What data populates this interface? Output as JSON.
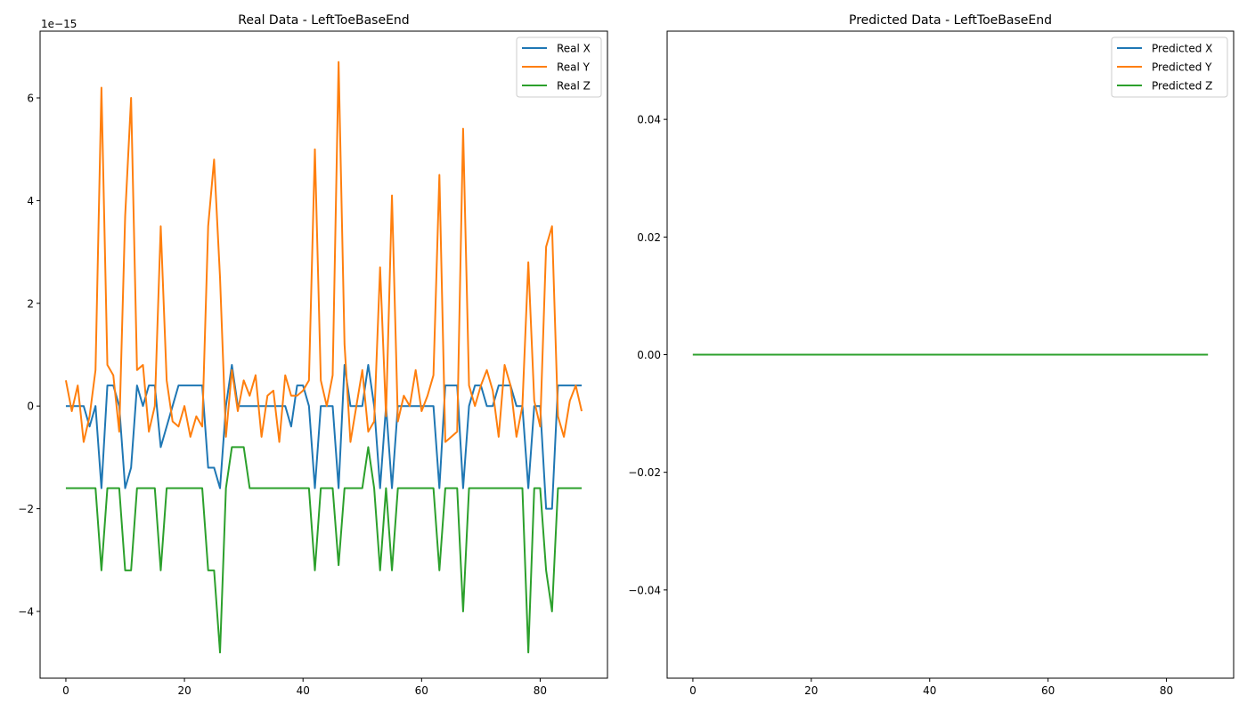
{
  "colors": {
    "x": "#1f77b4",
    "y": "#ff7f0e",
    "z": "#2ca02c"
  },
  "chart_data": [
    {
      "type": "line",
      "title": "Real Data - LeftToeBaseEnd",
      "xlabel": "",
      "ylabel": "",
      "offset_text": "1e−15",
      "xlim": [
        -4.35,
        91.35
      ],
      "ylim": [
        -5.3,
        7.3
      ],
      "xticks": [
        0,
        20,
        40,
        60,
        80
      ],
      "yticks": [
        -4,
        -2,
        0,
        2,
        4,
        6
      ],
      "ytick_labels": [
        "−4",
        "−2",
        "0",
        "2",
        "4",
        "6"
      ],
      "legend_position": "top-right",
      "x": [
        0,
        1,
        2,
        3,
        4,
        5,
        6,
        7,
        8,
        9,
        10,
        11,
        12,
        13,
        14,
        15,
        16,
        17,
        18,
        19,
        20,
        21,
        22,
        23,
        24,
        25,
        26,
        27,
        28,
        29,
        30,
        31,
        32,
        33,
        34,
        35,
        36,
        37,
        38,
        39,
        40,
        41,
        42,
        43,
        44,
        45,
        46,
        47,
        48,
        49,
        50,
        51,
        52,
        53,
        54,
        55,
        56,
        57,
        58,
        59,
        60,
        61,
        62,
        63,
        64,
        65,
        66,
        67,
        68,
        69,
        70,
        71,
        72,
        73,
        74,
        75,
        76,
        77,
        78,
        79,
        80,
        81,
        82,
        83,
        84,
        85,
        86,
        87
      ],
      "series": [
        {
          "name": "Real X",
          "color_key": "x",
          "values": [
            0,
            0,
            0,
            0,
            -0.4,
            0,
            -1.6,
            0.4,
            0.4,
            0,
            -1.6,
            -1.2,
            0.4,
            0,
            0.4,
            0.4,
            -0.8,
            -0.4,
            0,
            0.4,
            0.4,
            0.4,
            0.4,
            0.4,
            -1.2,
            -1.2,
            -1.6,
            0,
            0.8,
            0,
            0,
            0,
            0,
            0,
            0,
            0,
            0,
            0,
            -0.4,
            0.4,
            0.4,
            0,
            -1.6,
            0,
            0,
            0,
            -1.6,
            0.8,
            0,
            0,
            0,
            0.8,
            0,
            -1.6,
            0,
            -1.6,
            0,
            0,
            0,
            0,
            0,
            0,
            0,
            -1.6,
            0.4,
            0.4,
            0.4,
            -1.6,
            0,
            0.4,
            0.4,
            0,
            0,
            0.4,
            0.4,
            0.4,
            0,
            0,
            -1.6,
            0,
            0,
            -2,
            -2,
            0.4,
            0.4,
            0.4,
            0.4,
            0.4
          ]
        },
        {
          "name": "Real Y",
          "color_key": "y",
          "values": [
            0.5,
            -0.1,
            0.4,
            -0.7,
            -0.2,
            0.7,
            6.2,
            0.8,
            0.6,
            -0.5,
            3.7,
            6.0,
            0.7,
            0.8,
            -0.5,
            0.0,
            3.5,
            0.5,
            -0.3,
            -0.4,
            0.0,
            -0.6,
            -0.2,
            -0.4,
            3.5,
            4.8,
            2.5,
            -0.6,
            0.7,
            -0.1,
            0.5,
            0.2,
            0.6,
            -0.6,
            0.2,
            0.3,
            -0.7,
            0.6,
            0.2,
            0.2,
            0.3,
            0.5,
            5.0,
            0.5,
            0.0,
            0.6,
            6.7,
            1.2,
            -0.7,
            0.0,
            0.7,
            -0.5,
            -0.3,
            2.7,
            -0.2,
            4.1,
            -0.3,
            0.2,
            0.0,
            0.7,
            -0.1,
            0.2,
            0.6,
            4.5,
            -0.7,
            -0.6,
            -0.5,
            5.4,
            0.4,
            0.0,
            0.4,
            0.7,
            0.3,
            -0.6,
            0.8,
            0.4,
            -0.6,
            0.0,
            2.8,
            0.1,
            -0.4,
            3.1,
            3.5,
            -0.2,
            -0.6,
            0.1,
            0.4,
            -0.1
          ]
        },
        {
          "name": "Real Z",
          "color_key": "z",
          "values": [
            -1.6,
            -1.6,
            -1.6,
            -1.6,
            -1.6,
            -1.6,
            -3.2,
            -1.6,
            -1.6,
            -1.6,
            -3.2,
            -3.2,
            -1.6,
            -1.6,
            -1.6,
            -1.6,
            -3.2,
            -1.6,
            -1.6,
            -1.6,
            -1.6,
            -1.6,
            -1.6,
            -1.6,
            -3.2,
            -3.2,
            -4.8,
            -1.6,
            -0.8,
            -0.8,
            -0.8,
            -1.6,
            -1.6,
            -1.6,
            -1.6,
            -1.6,
            -1.6,
            -1.6,
            -1.6,
            -1.6,
            -1.6,
            -1.6,
            -3.2,
            -1.6,
            -1.6,
            -1.6,
            -3.1,
            -1.6,
            -1.6,
            -1.6,
            -1.6,
            -0.8,
            -1.6,
            -3.2,
            -1.6,
            -3.2,
            -1.6,
            -1.6,
            -1.6,
            -1.6,
            -1.6,
            -1.6,
            -1.6,
            -3.2,
            -1.6,
            -1.6,
            -1.6,
            -4.0,
            -1.6,
            -1.6,
            -1.6,
            -1.6,
            -1.6,
            -1.6,
            -1.6,
            -1.6,
            -1.6,
            -1.6,
            -4.8,
            -1.6,
            -1.6,
            -3.2,
            -4.0,
            -1.6,
            -1.6,
            -1.6,
            -1.6,
            -1.6
          ]
        }
      ]
    },
    {
      "type": "line",
      "title": "Predicted Data - LeftToeBaseEnd",
      "xlabel": "",
      "ylabel": "",
      "xlim": [
        -4.35,
        91.35
      ],
      "ylim": [
        -0.055,
        0.055
      ],
      "xticks": [
        0,
        20,
        40,
        60,
        80
      ],
      "yticks": [
        -0.04,
        -0.02,
        0.0,
        0.02,
        0.04
      ],
      "ytick_labels": [
        "−0.04",
        "−0.02",
        "0.00",
        "0.02",
        "0.04"
      ],
      "legend_position": "top-right",
      "x": [
        0,
        87
      ],
      "series": [
        {
          "name": "Predicted X",
          "color_key": "x",
          "values": [
            0,
            0
          ]
        },
        {
          "name": "Predicted Y",
          "color_key": "y",
          "values": [
            0,
            0
          ]
        },
        {
          "name": "Predicted Z",
          "color_key": "z",
          "values": [
            0,
            0
          ]
        }
      ]
    }
  ]
}
